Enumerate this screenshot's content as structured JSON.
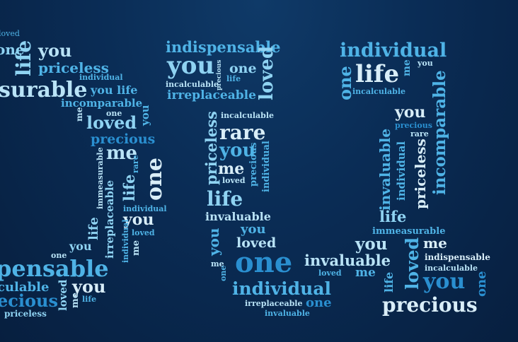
{
  "words": {
    "w1": "loved",
    "w2": "one",
    "w3": "life",
    "w4": "you",
    "w5": "priceless",
    "w6": "individual",
    "w7": "surable",
    "w8": "you life",
    "w9": "incomparable",
    "w10": "one",
    "w11": "me",
    "w12": "loved",
    "w13": "you",
    "w14": "precious",
    "w15": "me",
    "w16": "one",
    "w17": "rare",
    "w18": "life",
    "w19": "immeasurable",
    "w20": "individual",
    "w21": "you",
    "w22": "loved",
    "w23": "life",
    "w24": "irreplaceable",
    "w25": "individual",
    "w26": "me",
    "w27": "you",
    "w28": "one",
    "w29": "pensable",
    "w30": "loved",
    "w31": "you",
    "w32": "me",
    "w33": "life",
    "w34": "culable",
    "w35": "ecious",
    "w36": "priceless",
    "w37": "indispensable",
    "w38": "you",
    "w39": "one",
    "w40": "precious",
    "w41": "life",
    "w42": "incalculable",
    "w43": "loved",
    "w44": "irreplaceable",
    "w45": "incalculable",
    "w46": "rare",
    "w47": "priceless",
    "w48": "you",
    "w49": "me",
    "w50": "loved",
    "w51": "precious",
    "w52": "individual",
    "w53": "life",
    "w54": "invaluable",
    "w55": "you",
    "w56": "loved",
    "w57": "you",
    "w58": "one",
    "w59": "me",
    "w60": "one",
    "w61": "invaluable",
    "w62": "loved",
    "w63": "me",
    "w64": "individual",
    "w65": "irreplaceable",
    "w66": "one",
    "w67": "invaluable",
    "w68": "individual",
    "w69": "one",
    "w70": "life",
    "w71": "me",
    "w72": "you",
    "w73": "incalculable",
    "w74": "incomparable",
    "w75": "you",
    "w76": "precious",
    "w77": "rare",
    "w78": "invaluable",
    "w79": "individual",
    "w80": "priceless",
    "w81": "life",
    "w82": "immeasurable",
    "w83": "you",
    "w84": "me",
    "w85": "loved",
    "w86": "indispensable",
    "w87": "incalculable",
    "w88": "life",
    "w89": "you",
    "w90": "one",
    "w91": "precious"
  }
}
